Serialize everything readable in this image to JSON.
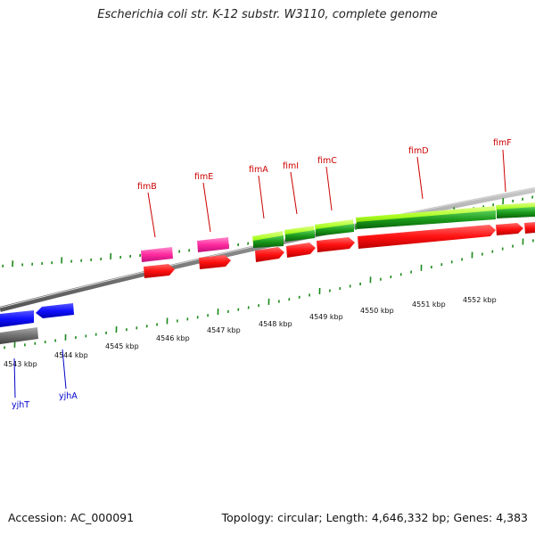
{
  "title": "Escherichia coli str. K-12 substr. W3110, complete genome",
  "footer": {
    "accession": "Accession: AC_000091",
    "summary": "Topology: circular; Length: 4,646,332 bp; Genes: 4,383"
  },
  "colors": {
    "backbone": "#8a8a8a",
    "tick": "#1a8a1a",
    "forward_gene": "#ff1a1a",
    "reverse_gene": "#1a1aff",
    "pseudo_gene": "#777777",
    "rna_pink": "#ff2aa0",
    "cds_lime": "#aaff22",
    "cds_green": "#1a9a1a",
    "label_forward": "#cc0000",
    "label_reverse": "#0000cc"
  },
  "scale_labels": [
    "4543 kbp",
    "4544 kbp",
    "4545 kbp",
    "4546 kbp",
    "4547 kbp",
    "4548 kbp",
    "4549 kbp",
    "4550 kbp",
    "4551 kbp",
    "4552 kbp"
  ],
  "genes": [
    {
      "name": "fimB",
      "strand": "forward"
    },
    {
      "name": "fimE",
      "strand": "forward"
    },
    {
      "name": "fimA",
      "strand": "forward"
    },
    {
      "name": "fimI",
      "strand": "forward"
    },
    {
      "name": "fimC",
      "strand": "forward"
    },
    {
      "name": "fimD",
      "strand": "forward"
    },
    {
      "name": "fimF",
      "strand": "forward"
    },
    {
      "name": "yjhT",
      "strand": "reverse"
    },
    {
      "name": "yjhA",
      "strand": "reverse"
    }
  ]
}
